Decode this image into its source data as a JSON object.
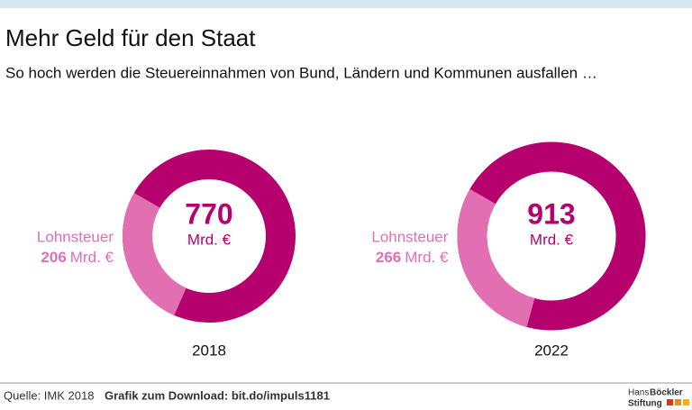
{
  "header": {
    "title": "Mehr Geld für den Staat",
    "subtitle": "So hoch werden die Steuereinnahmen von Bund, Ländern und Kommunen ausfallen …"
  },
  "chart_data": [
    {
      "type": "donut",
      "x_label": "2018",
      "total": 770,
      "unit": "Mrd. €",
      "color": "#b5006e",
      "series": [
        {
          "name": "Lohnsteuer",
          "color": "#e36fb3",
          "values": [
            206
          ]
        }
      ]
    },
    {
      "type": "donut",
      "x_label": "2022",
      "total": 913,
      "unit": "Mrd. €",
      "color": "#b5006e",
      "series": [
        {
          "name": "Lohnsteuer",
          "color": "#e36fb3",
          "values": [
            266
          ]
        }
      ]
    }
  ],
  "footer": {
    "source": "Quelle: IMK 2018",
    "download": "Grafik zum Download: bit.do/impuls1181",
    "logo_line1": "Hans",
    "logo_line1b": "Böckler",
    "logo_line2": "Stiftung"
  }
}
